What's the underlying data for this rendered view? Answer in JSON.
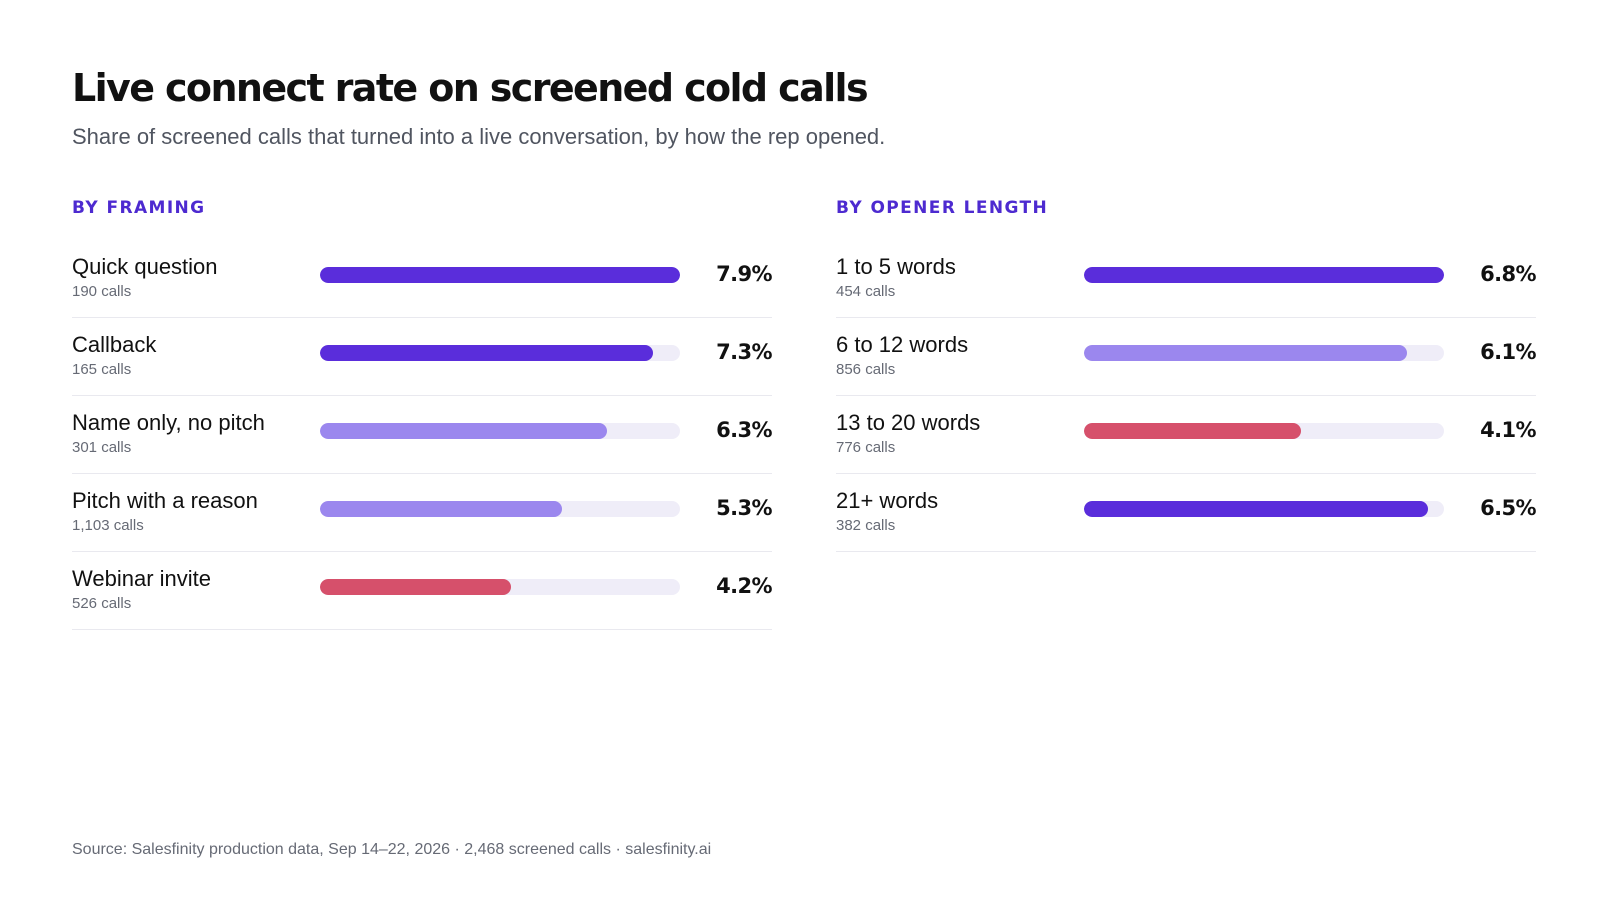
{
  "title": "Live connect rate on screened cold calls",
  "subtitle": "Share of screened calls that turned into a live conversation, by how the rep opened.",
  "source": "Source: Salesfinity production data, Sep 14–22, 2026 · 2,468 screened calls · salesfinity.ai",
  "colors": {
    "accent": "#4d2ad0",
    "high": "#5a2ddb",
    "mid": "#9b87ee",
    "low": "#d6506b",
    "track": "#efedf8"
  },
  "chart_data": [
    {
      "type": "bar",
      "orientation": "horizontal",
      "title": "BY FRAMING",
      "unit": "%",
      "xlim": [
        0,
        7.9
      ],
      "categories": [
        "Quick question",
        "Callback",
        "Name only, no pitch",
        "Pitch with a reason",
        "Webinar invite"
      ],
      "counts": [
        "190 calls",
        "165 calls",
        "301 calls",
        "1,103 calls",
        "526 calls"
      ],
      "values": [
        7.9,
        7.3,
        6.3,
        5.3,
        4.2
      ],
      "labels": [
        "7.9%",
        "7.3%",
        "6.3%",
        "5.3%",
        "4.2%"
      ],
      "bar_colors": [
        "#5a2ddb",
        "#5a2ddb",
        "#9b87ee",
        "#9b87ee",
        "#d6506b"
      ]
    },
    {
      "type": "bar",
      "orientation": "horizontal",
      "title": "BY OPENER LENGTH",
      "unit": "%",
      "xlim": [
        0,
        6.8
      ],
      "categories": [
        "1 to 5 words",
        "6 to 12 words",
        "13 to 20 words",
        "21+ words"
      ],
      "counts": [
        "454 calls",
        "856 calls",
        "776 calls",
        "382 calls"
      ],
      "values": [
        6.8,
        6.1,
        4.1,
        6.5
      ],
      "labels": [
        "6.8%",
        "6.1%",
        "4.1%",
        "6.5%"
      ],
      "bar_colors": [
        "#5a2ddb",
        "#9b87ee",
        "#d6506b",
        "#5a2ddb"
      ]
    }
  ]
}
